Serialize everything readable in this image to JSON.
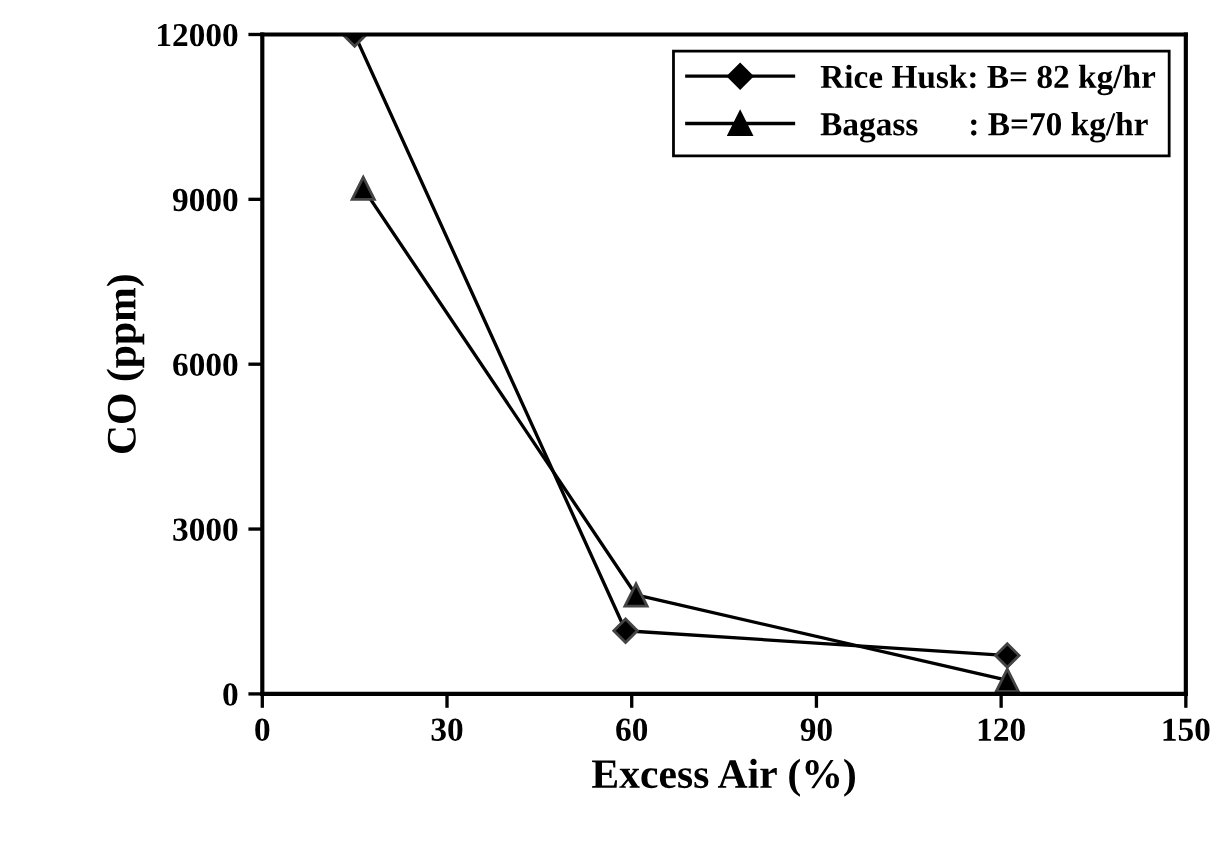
{
  "chart_data": {
    "type": "line",
    "xlabel": "Excess Air (%)",
    "ylabel": "CO (ppm)",
    "xlim": [
      0,
      150
    ],
    "xticks": [
      0,
      30,
      60,
      90,
      120,
      150
    ],
    "ylim": [
      0,
      12000
    ],
    "yticks": [
      0,
      3000,
      6000,
      9000,
      12000
    ],
    "grid": false,
    "legend": "top right",
    "series": [
      {
        "name": "Rice Husk: B= 82 kg/hr",
        "color": "#000000",
        "marker": "diamond",
        "x": [
          15,
          59,
          121
        ],
        "values": [
          12000,
          1150,
          700
        ]
      },
      {
        "name": "Bagass      : B=70 kg/hr",
        "color": "#000000",
        "marker": "triangle",
        "x": [
          16.4,
          60.7,
          121
        ],
        "values": [
          9200,
          1800,
          250
        ]
      }
    ]
  }
}
